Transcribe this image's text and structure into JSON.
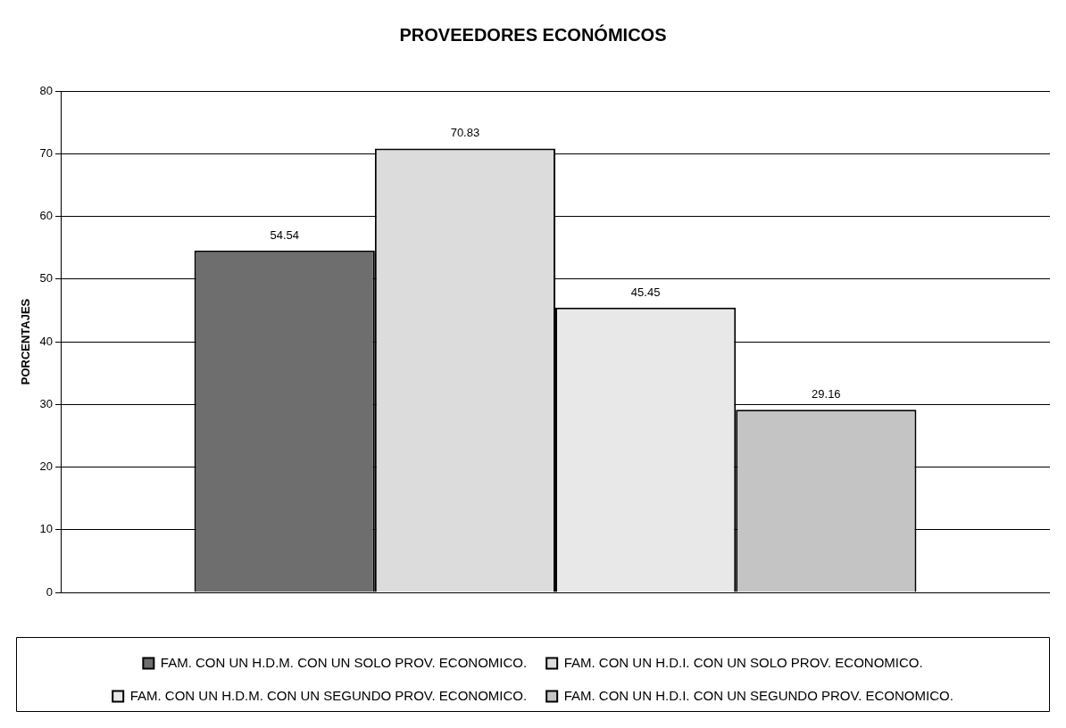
{
  "chart_data": {
    "type": "bar",
    "title": "PROVEEDORES ECONÓMICOS",
    "ylabel": "PORCENTAJES",
    "categories": [
      null
    ],
    "series": [
      {
        "name": "FAM. CON UN H.D.M. CON UN SOLO PROV. ECONOMICO.",
        "color": "#6e6e6e",
        "values": [
          54.54
        ]
      },
      {
        "name": "FAM. CON UN H.D.I. CON UN SOLO PROV. ECONOMICO.",
        "color": "#dcdcdc",
        "values": [
          70.83
        ]
      },
      {
        "name": "FAM. CON UN H.D.M. CON UN SEGUNDO PROV. ECONOMICO.",
        "color": "#e8e8e8",
        "values": [
          45.45
        ]
      },
      {
        "name": "FAM. CON UN H.D.I. CON UN SEGUNDO PROV. ECONOMICO.",
        "color": "#c4c4c4",
        "values": [
          29.16
        ]
      }
    ],
    "ylim": [
      0,
      80
    ],
    "yticks": [
      0,
      10,
      20,
      30,
      40,
      50,
      60,
      70,
      80
    ],
    "grid": "y",
    "legend": "bottom",
    "data_labels": true
  }
}
